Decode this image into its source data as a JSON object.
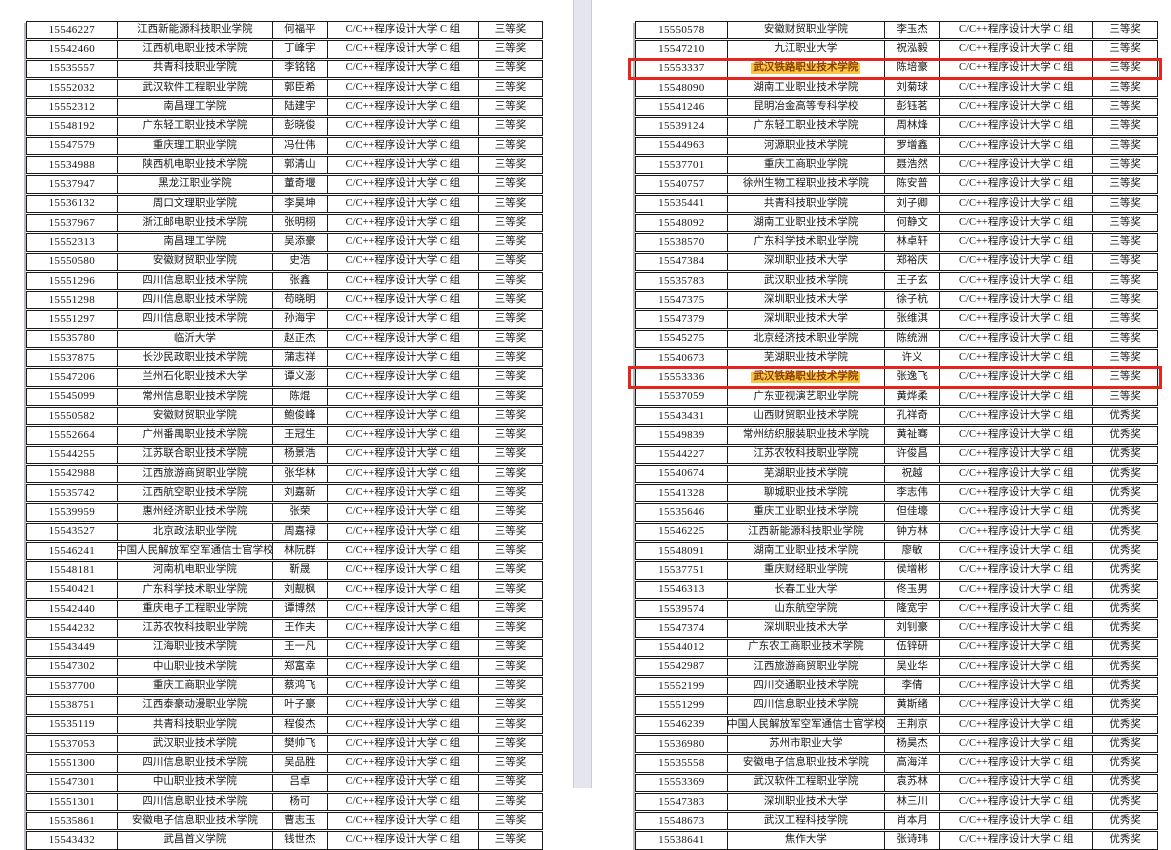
{
  "viewer": {
    "background": "#ffffff",
    "gap_color": "#e4e6eb"
  },
  "category": "C/C++程序设计大学 C 组",
  "highlight": {
    "ids": [
      "15553337",
      "15553336"
    ],
    "border_color": "#e6261c",
    "fill_color": "#f7c844",
    "text_color": "#8c3a00"
  },
  "pages": [
    {
      "side": "left",
      "rows": [
        [
          "15546227",
          "江西新能源科技职业学院",
          "何福平",
          "三等奖"
        ],
        [
          "15542460",
          "江西机电职业技术学院",
          "丁峰宇",
          "三等奖"
        ],
        [
          "15535557",
          "共青科技职业学院",
          "李铭铭",
          "三等奖"
        ],
        [
          "15552032",
          "武汉软件工程职业学院",
          "郭臣希",
          "三等奖"
        ],
        [
          "15552312",
          "南昌理工学院",
          "陆建宇",
          "三等奖"
        ],
        [
          "15548192",
          "广东轻工职业技术学院",
          "彭晓俊",
          "三等奖"
        ],
        [
          "15547579",
          "重庆理工职业学院",
          "冯仕伟",
          "三等奖"
        ],
        [
          "15534988",
          "陕西机电职业技术学院",
          "郭清山",
          "三等奖"
        ],
        [
          "15537947",
          "黑龙江职业学院",
          "董奇堰",
          "三等奖"
        ],
        [
          "15536132",
          "周口文理职业学院",
          "李昊坤",
          "三等奖"
        ],
        [
          "15537967",
          "浙江邮电职业技术学院",
          "张明栩",
          "三等奖"
        ],
        [
          "15552313",
          "南昌理工学院",
          "吴添豪",
          "三等奖"
        ],
        [
          "15550580",
          "安徽财贸职业学院",
          "史浩",
          "三等奖"
        ],
        [
          "15551296",
          "四川信息职业技术学院",
          "张鑫",
          "三等奖"
        ],
        [
          "15551298",
          "四川信息职业技术学院",
          "苟晓明",
          "三等奖"
        ],
        [
          "15551297",
          "四川信息职业技术学院",
          "孙海宇",
          "三等奖"
        ],
        [
          "15535780",
          "临沂大学",
          "赵正杰",
          "三等奖"
        ],
        [
          "15537875",
          "长沙民政职业技术学院",
          "蒲志祥",
          "三等奖"
        ],
        [
          "15547206",
          "兰州石化职业技术大学",
          "谭义澎",
          "三等奖"
        ],
        [
          "15545099",
          "常州信息职业技术学院",
          "陈焜",
          "三等奖"
        ],
        [
          "15550582",
          "安徽财贸职业学院",
          "鲍俊峰",
          "三等奖"
        ],
        [
          "15552664",
          "广州番禺职业技术学院",
          "王冠生",
          "三等奖"
        ],
        [
          "15544255",
          "江苏联合职业技术学院",
          "杨景浩",
          "三等奖"
        ],
        [
          "15542988",
          "江西旅游商贸职业学院",
          "张华林",
          "三等奖"
        ],
        [
          "15535742",
          "江西航空职业技术学院",
          "刘嘉新",
          "三等奖"
        ],
        [
          "15539959",
          "惠州经济职业技术学院",
          "张荣",
          "三等奖"
        ],
        [
          "15543527",
          "北京政法职业学院",
          "周嘉禄",
          "三等奖"
        ],
        [
          "15546241",
          "中国人民解放军空军通信士官学校",
          "林阮群",
          "三等奖"
        ],
        [
          "15548181",
          "河南机电职业学院",
          "靳晟",
          "三等奖"
        ],
        [
          "15540421",
          "广东科学技术职业学院",
          "刘靓枫",
          "三等奖"
        ],
        [
          "15542440",
          "重庆电子工程职业学院",
          "谭博然",
          "三等奖"
        ],
        [
          "15544232",
          "江苏农牧科技职业学院",
          "王作夫",
          "三等奖"
        ],
        [
          "15543449",
          "江海职业技术学院",
          "王一凡",
          "三等奖"
        ],
        [
          "15547302",
          "中山职业技术学院",
          "郑富幸",
          "三等奖"
        ],
        [
          "15537700",
          "重庆工商职业学院",
          "蔡鸿飞",
          "三等奖"
        ],
        [
          "15538751",
          "江西泰豪动漫职业学院",
          "叶子豪",
          "三等奖"
        ],
        [
          "15535119",
          "共青科技职业学院",
          "程俊杰",
          "三等奖"
        ],
        [
          "15537053",
          "武汉职业技术学院",
          "樊帅飞",
          "三等奖"
        ],
        [
          "15551300",
          "四川信息职业技术学院",
          "吴品胜",
          "三等奖"
        ],
        [
          "15547301",
          "中山职业技术学院",
          "吕卓",
          "三等奖"
        ],
        [
          "15551301",
          "四川信息职业技术学院",
          "杨可",
          "三等奖"
        ],
        [
          "15535861",
          "安徽电子信息职业技术学院",
          "曹志玉",
          "三等奖"
        ],
        [
          "15543432",
          "武昌首义学院",
          "钱世杰",
          "三等奖"
        ]
      ]
    },
    {
      "side": "right",
      "rows": [
        [
          "15550578",
          "安徽财贸职业学院",
          "李玉杰",
          "三等奖"
        ],
        [
          "15547210",
          "九江职业大学",
          "祝泓毅",
          "三等奖"
        ],
        [
          "15553337",
          "武汉铁路职业技术学院",
          "陈培豪",
          "三等奖"
        ],
        [
          "15548090",
          "湖南工业职业技术学院",
          "刘菊球",
          "三等奖"
        ],
        [
          "15541246",
          "昆明冶金高等专科学校",
          "彭钰茗",
          "三等奖"
        ],
        [
          "15539124",
          "广东轻工职业技术学院",
          "周林烽",
          "三等奖"
        ],
        [
          "15544963",
          "河源职业技术学院",
          "罗增鑫",
          "三等奖"
        ],
        [
          "15537701",
          "重庆工商职业学院",
          "聂浩然",
          "三等奖"
        ],
        [
          "15540757",
          "徐州生物工程职业技术学院",
          "陈安普",
          "三等奖"
        ],
        [
          "15535441",
          "共青科技职业学院",
          "刘子卿",
          "三等奖"
        ],
        [
          "15548092",
          "湖南工业职业技术学院",
          "何静文",
          "三等奖"
        ],
        [
          "15538570",
          "广东科学技术职业学院",
          "林卓轩",
          "三等奖"
        ],
        [
          "15547384",
          "深圳职业技术大学",
          "郑裕庆",
          "三等奖"
        ],
        [
          "15535783",
          "武汉职业技术学院",
          "王子玄",
          "三等奖"
        ],
        [
          "15547375",
          "深圳职业技术大学",
          "徐子杭",
          "三等奖"
        ],
        [
          "15547379",
          "深圳职业技术大学",
          "张维淇",
          "三等奖"
        ],
        [
          "15545275",
          "北京经济技术职业学院",
          "陈统洲",
          "三等奖"
        ],
        [
          "15540673",
          "芜湖职业技术学院",
          "许义",
          "三等奖"
        ],
        [
          "15553336",
          "武汉铁路职业技术学院",
          "张逸飞",
          "三等奖"
        ],
        [
          "15537059",
          "广东亚视演艺职业学院",
          "黄烨柔",
          "三等奖"
        ],
        [
          "15543431",
          "山西财贸职业技术学院",
          "孔祥奇",
          "优秀奖"
        ],
        [
          "15549839",
          "常州纺织服装职业技术学院",
          "黄祉骞",
          "优秀奖"
        ],
        [
          "15544227",
          "江苏农牧科技职业学院",
          "许俊昌",
          "优秀奖"
        ],
        [
          "15540674",
          "芜湖职业技术学院",
          "祝越",
          "优秀奖"
        ],
        [
          "15541328",
          "聊城职业技术学院",
          "李志伟",
          "优秀奖"
        ],
        [
          "15535646",
          "重庆工业职业技术学院",
          "但佳壕",
          "优秀奖"
        ],
        [
          "15546225",
          "江西新能源科技职业学院",
          "钟方林",
          "优秀奖"
        ],
        [
          "15548091",
          "湖南工业职业技术学院",
          "廖敏",
          "优秀奖"
        ],
        [
          "15537751",
          "重庆财经职业学院",
          "侯增彬",
          "优秀奖"
        ],
        [
          "15546313",
          "长春工业大学",
          "佟玉男",
          "优秀奖"
        ],
        [
          "15539574",
          "山东航空学院",
          "隆宽宇",
          "优秀奖"
        ],
        [
          "15547374",
          "深圳职业技术大学",
          "刘钊豪",
          "优秀奖"
        ],
        [
          "15544012",
          "广东农工商职业技术学院",
          "伍锌研",
          "优秀奖"
        ],
        [
          "15542987",
          "江西旅游商贸职业学院",
          "吴业华",
          "优秀奖"
        ],
        [
          "15552199",
          "四川交通职业技术学院",
          "李倩",
          "优秀奖"
        ],
        [
          "15551299",
          "四川信息职业技术学院",
          "黄斯绪",
          "优秀奖"
        ],
        [
          "15546239",
          "中国人民解放军空军通信士官学校",
          "王荆京",
          "优秀奖"
        ],
        [
          "15536980",
          "苏州市职业大学",
          "杨昊杰",
          "优秀奖"
        ],
        [
          "15535558",
          "安徽电子信息职业技术学院",
          "高海洋",
          "优秀奖"
        ],
        [
          "15553369",
          "武汉软件工程职业学院",
          "袁苏林",
          "优秀奖"
        ],
        [
          "15547383",
          "深圳职业技术大学",
          "林三川",
          "优秀奖"
        ],
        [
          "15548673",
          "武汉工程科技学院",
          "肖本月",
          "优秀奖"
        ],
        [
          "15538641",
          "焦作大学",
          "张诗玮",
          "优秀奖"
        ]
      ]
    }
  ]
}
